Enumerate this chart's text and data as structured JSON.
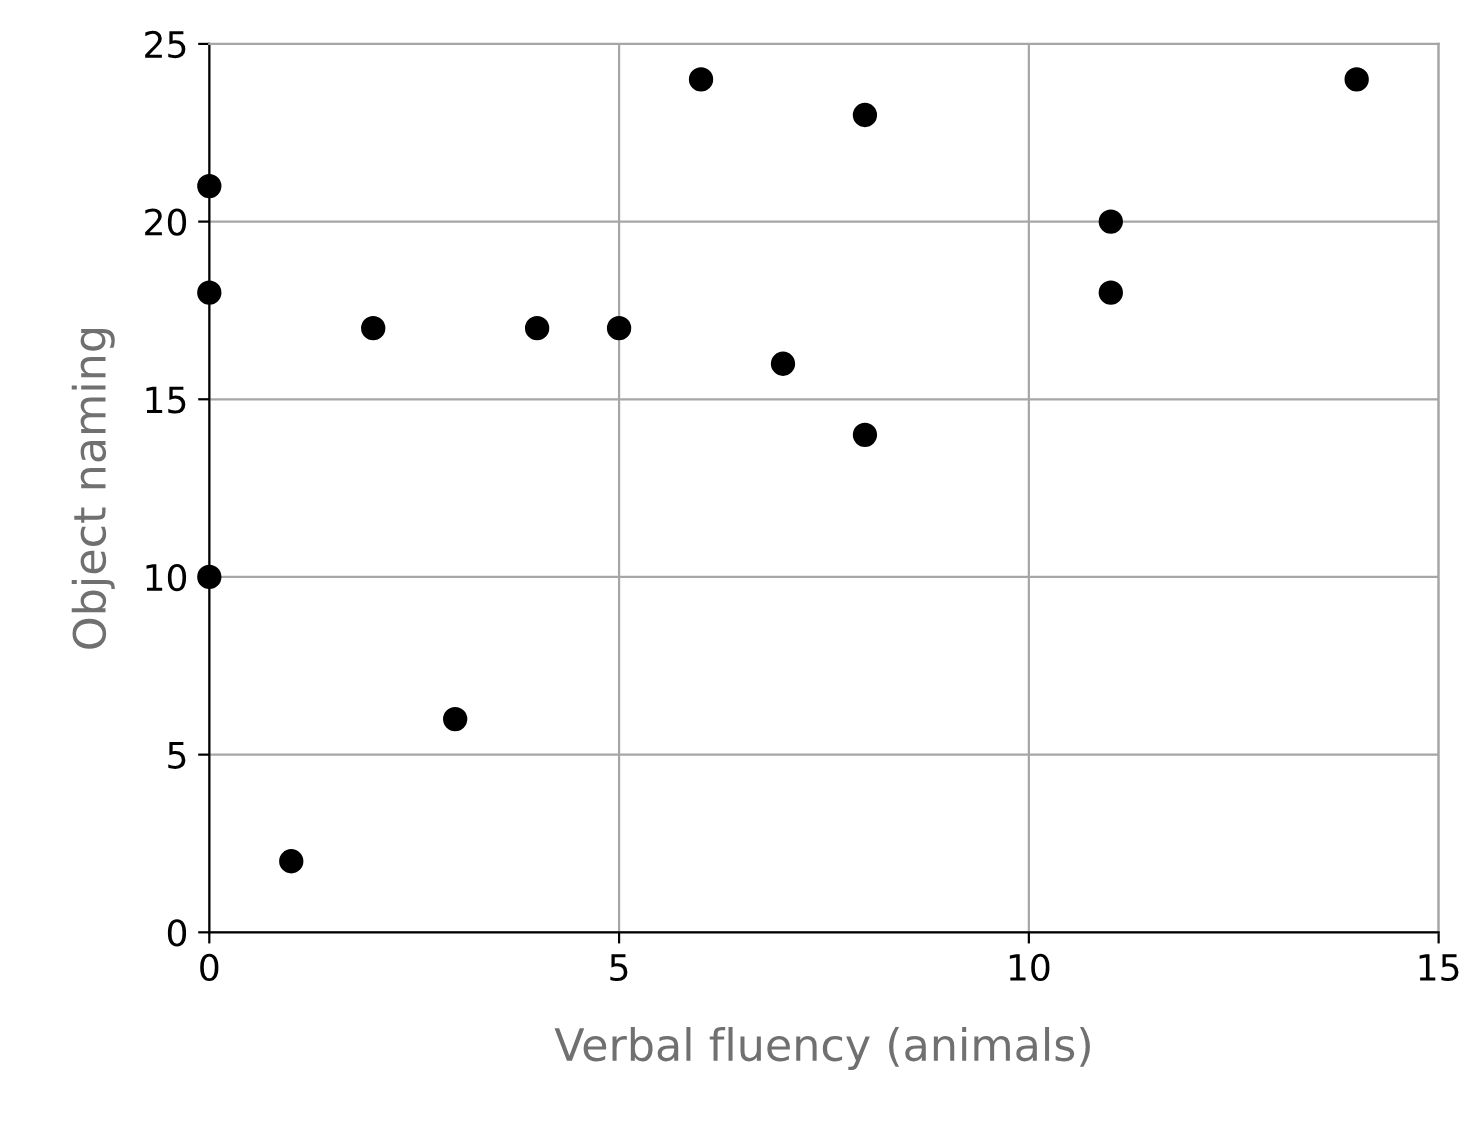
{
  "chart_data": {
    "type": "scatter",
    "xlabel": "Verbal fluency (animals)",
    "ylabel": "Object naming",
    "x": [
      0,
      0,
      0,
      1,
      2,
      3,
      4,
      5,
      6,
      7,
      8,
      8,
      11,
      11,
      14
    ],
    "values": [
      21,
      18,
      10,
      2,
      17,
      6,
      17,
      17,
      24,
      16,
      23,
      14,
      20,
      18,
      24
    ],
    "color": "#000000",
    "marker": "circle",
    "xlim": [
      0,
      15
    ],
    "xticks": [
      0,
      5,
      10,
      15
    ],
    "ylim": [
      0,
      25
    ],
    "yticks": [
      0,
      5,
      10,
      15,
      20,
      25
    ],
    "grid": true,
    "legend": false
  }
}
